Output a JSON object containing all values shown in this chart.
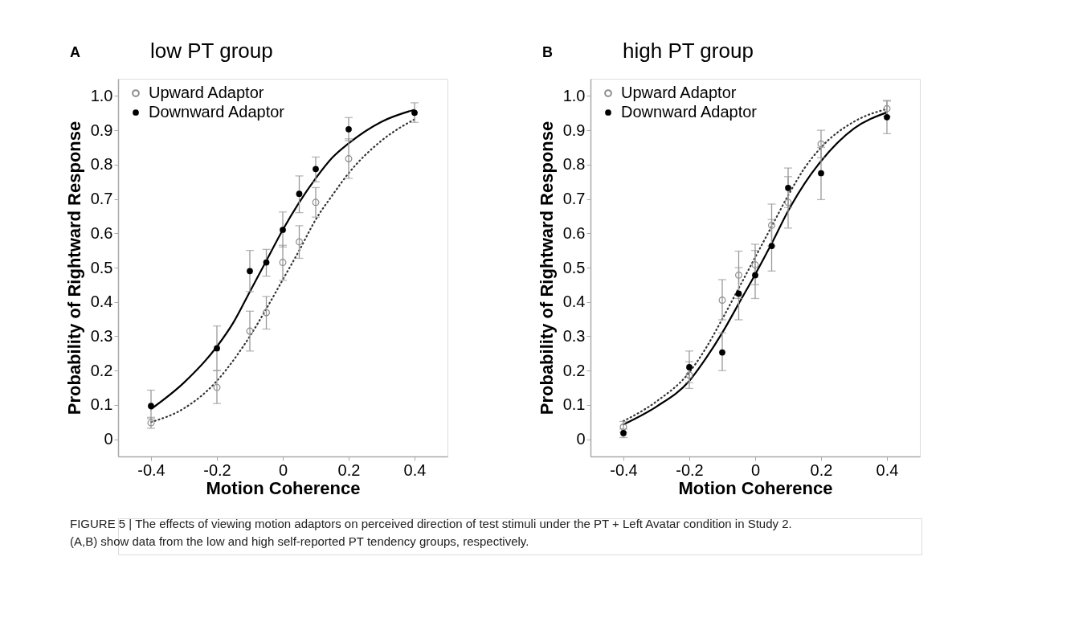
{
  "chart_data": [
    {
      "type": "scatter",
      "title": "low PT group",
      "xlabel": "Motion Coherence",
      "ylabel": "Probability of Rightward Response",
      "annotations": [
        "A"
      ],
      "xlim": [
        -0.5,
        0.5
      ],
      "xticks": [
        -0.4,
        -0.2,
        0,
        0.2,
        0.4
      ],
      "ylim": [
        -0.05,
        1.05
      ],
      "yticks": [
        0,
        0.1,
        0.2,
        0.3,
        0.4,
        0.5,
        0.6,
        0.7,
        0.8,
        0.9,
        {
          "value": 1,
          "label": "1.0"
        }
      ],
      "grid": false,
      "legend": "top left",
      "series": [
        {
          "name": "Upward Adaptor",
          "type": "scatter",
          "marker": "circle",
          "color": "#8c8c8c",
          "x": [
            -0.4,
            -0.2,
            -0.1,
            -0.05,
            0,
            0.05,
            0.1,
            0.2
          ],
          "values": [
            0.048,
            0.151,
            0.315,
            0.369,
            0.515,
            0.575,
            0.69,
            0.817
          ],
          "errors": [
            [
              0.032,
              0.064
            ],
            [
              0.104,
              0.2
            ],
            [
              0.257,
              0.373
            ],
            [
              0.321,
              0.416
            ],
            [
              0.463,
              0.565
            ],
            [
              0.527,
              0.622
            ],
            [
              0.647,
              0.733
            ],
            [
              0.76,
              0.875
            ]
          ]
        },
        {
          "name": "Downward Adaptor",
          "type": "scatter",
          "marker": "circle",
          "color": "#000000",
          "x": [
            -0.4,
            -0.2,
            -0.1,
            -0.05,
            0,
            0.05,
            0.1,
            0.2,
            0.4
          ],
          "values": [
            0.097,
            0.265,
            0.49,
            0.515,
            0.61,
            0.715,
            0.787,
            0.903,
            0.951
          ],
          "errors": [
            [
              0.06,
              0.143
            ],
            [
              0.2,
              0.33
            ],
            [
              0.43,
              0.55
            ],
            [
              0.475,
              0.553
            ],
            [
              0.56,
              0.662
            ],
            [
              0.66,
              0.767
            ],
            [
              0.75,
              0.822
            ],
            [
              0.87,
              0.937
            ],
            [
              0.923,
              0.98
            ]
          ]
        },
        {
          "type": "line",
          "color": "#333333",
          "line_style": "dotted",
          "x": [
            -0.4,
            -0.3,
            -0.2,
            -0.15,
            -0.1,
            -0.05,
            0,
            0.05,
            0.1,
            0.15,
            0.2,
            0.3,
            0.4
          ],
          "values": [
            0.05,
            0.09,
            0.17,
            0.23,
            0.3,
            0.38,
            0.465,
            0.55,
            0.64,
            0.71,
            0.775,
            0.87,
            0.932
          ]
        },
        {
          "type": "line",
          "color": "#000000",
          "line_style": "solid",
          "x": [
            -0.4,
            -0.3,
            -0.2,
            -0.15,
            -0.1,
            -0.05,
            0,
            0.05,
            0.1,
            0.15,
            0.2,
            0.3,
            0.4
          ],
          "values": [
            0.088,
            0.165,
            0.27,
            0.34,
            0.43,
            0.52,
            0.61,
            0.69,
            0.76,
            0.82,
            0.862,
            0.925,
            0.96
          ]
        }
      ]
    },
    {
      "type": "scatter",
      "title": "high PT group",
      "xlabel": "Motion Coherence",
      "ylabel": "Probability of Rightward Response",
      "annotations": [
        "B",
        "FIGURE 5 | The effects of viewing motion adaptors on perceived direction of test stimuli under the PT + Left Avatar condition in Study 2. (A,B) show data from the low and high self-reported PT tendency groups, respectively."
      ],
      "xlim": [
        -0.5,
        0.5
      ],
      "xticks": [
        -0.4,
        -0.2,
        0,
        0.2,
        0.4
      ],
      "ylim": [
        -0.05,
        1.05
      ],
      "yticks": [
        0,
        0.1,
        0.2,
        0.3,
        0.4,
        0.5,
        0.6,
        0.7,
        0.8,
        0.9,
        {
          "value": 1,
          "label": "1.0"
        }
      ],
      "grid": false,
      "legend": "top left",
      "series": [
        {
          "name": "Upward Adaptor",
          "type": "scatter",
          "marker": "circle",
          "color": "#8c8c8c",
          "x": [
            -0.4,
            -0.2,
            -0.1,
            -0.05,
            0,
            0.05,
            0.1,
            0.2,
            0.4
          ],
          "values": [
            0.036,
            0.187,
            0.405,
            0.478,
            0.508,
            0.623,
            0.69,
            0.86,
            0.963
          ],
          "errors": [
            [
              0.02,
              0.052
            ],
            [
              0.148,
              0.226
            ],
            [
              0.348,
              0.465
            ],
            [
              0.41,
              0.548
            ],
            [
              0.45,
              0.568
            ],
            [
              0.563,
              0.685
            ],
            [
              0.615,
              0.765
            ],
            [
              0.82,
              0.9
            ],
            [
              0.94,
              0.987
            ]
          ]
        },
        {
          "name": "Downward Adaptor",
          "type": "scatter",
          "marker": "circle",
          "color": "#000000",
          "x": [
            -0.4,
            -0.2,
            -0.1,
            -0.05,
            0,
            0.05,
            0.1,
            0.2,
            0.4
          ],
          "values": [
            0.018,
            0.21,
            0.253,
            0.424,
            0.478,
            0.563,
            0.732,
            0.775,
            0.938
          ],
          "errors": [
            [
              0.005,
              0.03
            ],
            [
              0.165,
              0.257
            ],
            [
              0.2,
              0.31
            ],
            [
              0.348,
              0.5
            ],
            [
              0.41,
              0.55
            ],
            [
              0.49,
              0.64
            ],
            [
              0.675,
              0.79
            ],
            [
              0.698,
              0.85
            ],
            [
              0.89,
              0.985
            ]
          ]
        },
        {
          "type": "line",
          "color": "#333333",
          "line_style": "dotted",
          "x": [
            -0.4,
            -0.3,
            -0.2,
            -0.15,
            -0.1,
            -0.05,
            0,
            0.05,
            0.1,
            0.15,
            0.2,
            0.3,
            0.4
          ],
          "values": [
            0.053,
            0.11,
            0.195,
            0.265,
            0.35,
            0.44,
            0.53,
            0.62,
            0.71,
            0.79,
            0.85,
            0.925,
            0.962
          ]
        },
        {
          "type": "line",
          "color": "#000000",
          "line_style": "solid",
          "x": [
            -0.4,
            -0.3,
            -0.2,
            -0.15,
            -0.1,
            -0.05,
            0,
            0.05,
            0.1,
            0.15,
            0.2,
            0.3,
            0.4
          ],
          "values": [
            0.043,
            0.095,
            0.17,
            0.235,
            0.31,
            0.395,
            0.48,
            0.57,
            0.665,
            0.745,
            0.81,
            0.905,
            0.952
          ]
        }
      ]
    }
  ]
}
